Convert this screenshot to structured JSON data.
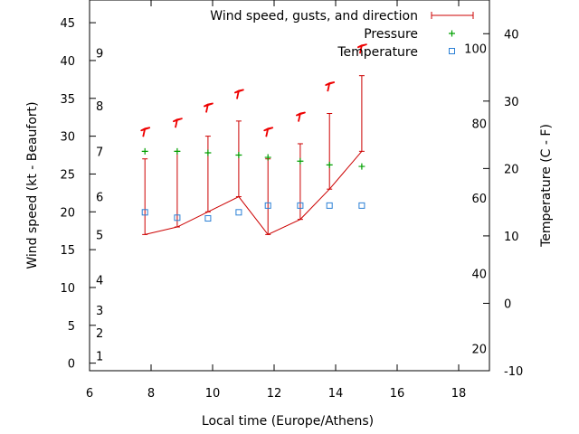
{
  "chart_data": {
    "type": "line",
    "title": "",
    "xlabel": "Local time (Europe/Athens)",
    "ylabel": "Wind speed (kt - Beaufort)",
    "y2label": "Temperature (C - F)",
    "xlim": [
      6,
      19
    ],
    "ylim": [
      -1,
      48
    ],
    "y2lim": [
      -10,
      45
    ],
    "x_ticks": [
      6,
      8,
      10,
      12,
      14,
      16,
      18
    ],
    "y_ticks": [
      0,
      5,
      10,
      15,
      20,
      25,
      30,
      35,
      40,
      45
    ],
    "y2_ticks": [
      -10,
      0,
      10,
      20,
      30,
      40
    ],
    "beaufort_labels": [
      {
        "label": "1",
        "y": 1
      },
      {
        "label": "2",
        "y": 4
      },
      {
        "label": "3",
        "y": 7
      },
      {
        "label": "4",
        "y": 11
      },
      {
        "label": "5",
        "y": 17
      },
      {
        "label": "6",
        "y": 22
      },
      {
        "label": "7",
        "y": 28
      },
      {
        "label": "8",
        "y": 34
      },
      {
        "label": "9",
        "y": 41
      }
    ],
    "fahrenheit_labels": [
      {
        "label": "20",
        "y2": -6.7
      },
      {
        "label": "40",
        "y2": 4.4
      },
      {
        "label": "60",
        "y2": 15.6
      },
      {
        "label": "80",
        "y2": 26.7
      },
      {
        "label": "100",
        "y2": 37.8
      }
    ],
    "grid": false,
    "legend_position": "top-right",
    "series": [
      {
        "name": "Wind speed, gusts, and direction",
        "color": "#cc0000",
        "x": [
          7.8,
          8.85,
          9.85,
          10.85,
          11.8,
          12.85,
          13.8,
          14.85
        ],
        "values": [
          17,
          18,
          20,
          22,
          17,
          19,
          23,
          28
        ],
        "gusts": [
          27,
          28,
          30,
          32,
          27,
          29,
          33,
          38
        ],
        "arrow_y": [
          31,
          32.2,
          34.2,
          36,
          31,
          33,
          37,
          42
        ]
      },
      {
        "name": "Pressure",
        "color": "#00a000",
        "x": [
          7.8,
          8.85,
          9.85,
          10.85,
          11.8,
          12.85,
          13.8,
          14.85
        ],
        "values": [
          28,
          28,
          27.8,
          27.5,
          27.2,
          26.7,
          26.2,
          26
        ]
      },
      {
        "name": "Temperature",
        "color": "#2a7fd5",
        "x": [
          7.8,
          8.85,
          9.85,
          10.85,
          11.8,
          12.85,
          13.8,
          14.85
        ],
        "values": [
          13.5,
          12.7,
          12.6,
          13.5,
          14.5,
          14.5,
          14.5,
          14.5
        ]
      }
    ]
  }
}
